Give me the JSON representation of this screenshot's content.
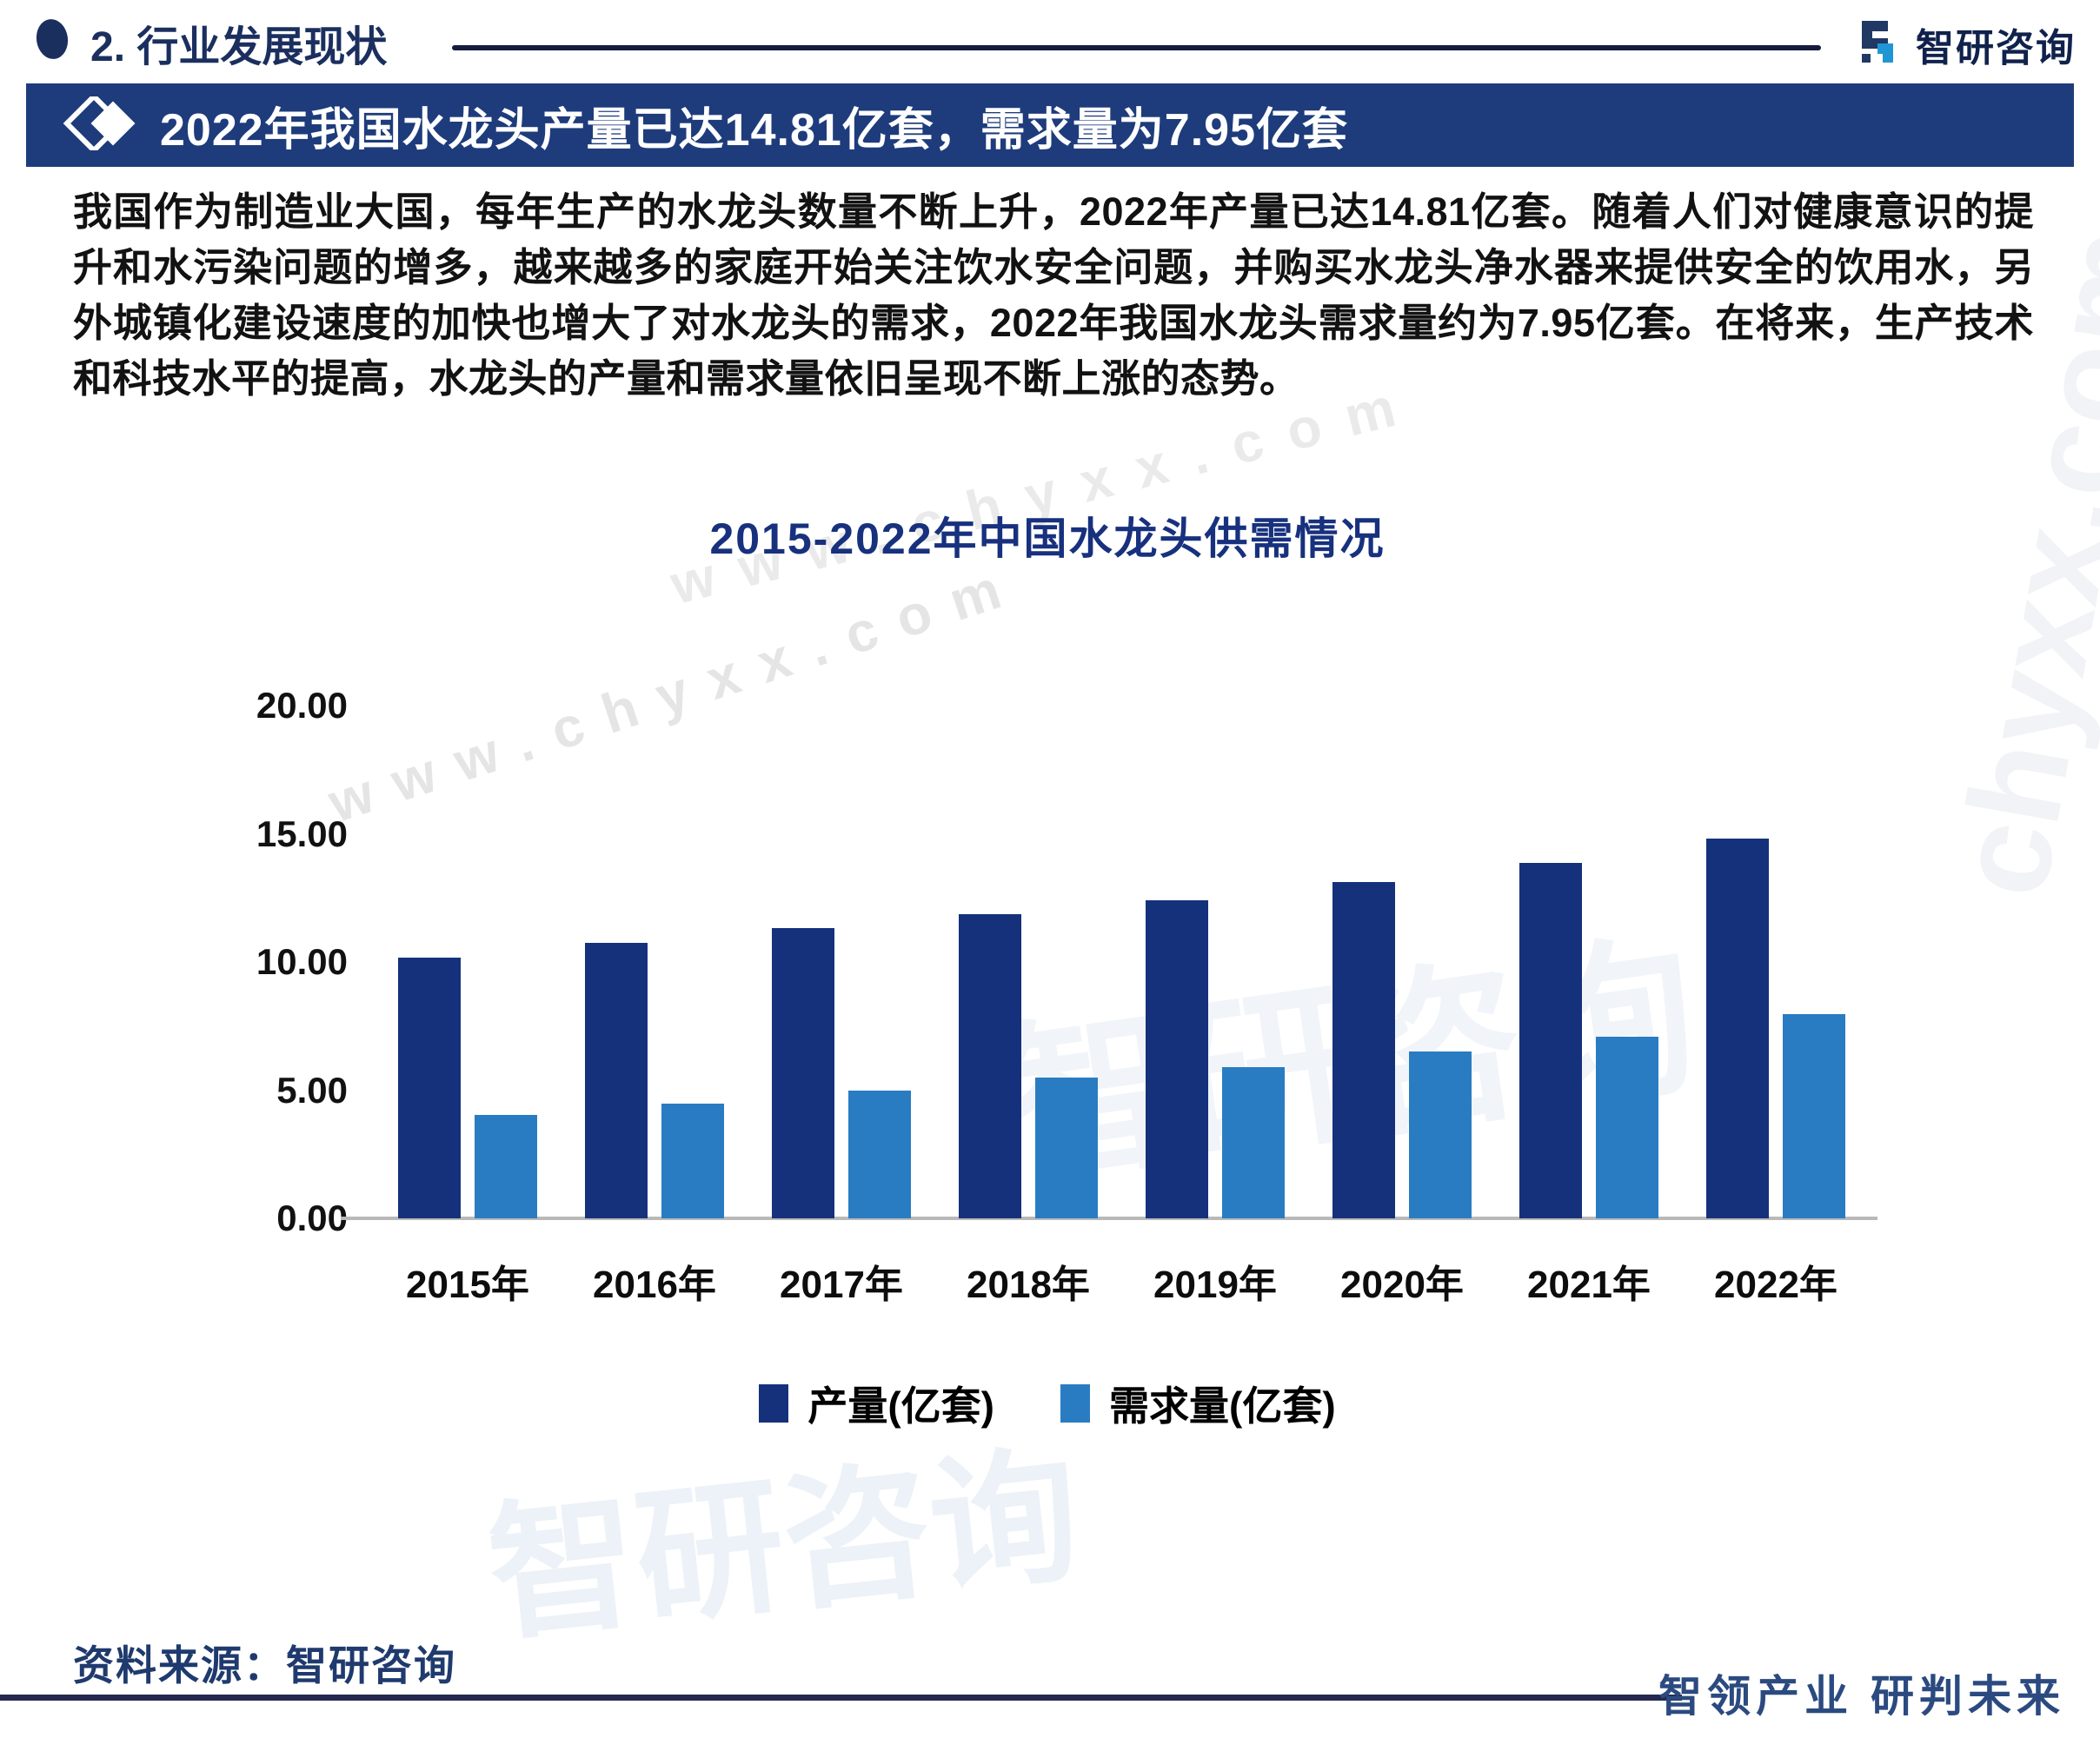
{
  "header": {
    "section_title": "2. 行业发展现状",
    "brand_name": "智研咨询"
  },
  "banner": {
    "title": "2022年我国水龙头产量已达14.81亿套，需求量为7.95亿套"
  },
  "paragraph": "我国作为制造业大国，每年生产的水龙头数量不断上升，2022年产量已达14.81亿套。随着人们对健康意识的提升和水污染问题的增多，越来越多的家庭开始关注饮水安全问题，并购买水龙头净水器来提供安全的饮用水，另外城镇化建设速度的加快也增大了对水龙头的需求，2022年我国水龙头需求量约为7.95亿套。在将来，生产技术和科技水平的提高，水龙头的产量和需求量依旧呈现不断上涨的态势。",
  "chart_data": {
    "type": "bar",
    "title": "2015-2022年中国水龙头供需情况",
    "categories": [
      "2015年",
      "2016年",
      "2017年",
      "2018年",
      "2019年",
      "2020年",
      "2021年",
      "2022年"
    ],
    "series": [
      {
        "name": "产量(亿套)",
        "color": "#15317b",
        "values": [
          10.18,
          10.74,
          11.31,
          11.88,
          12.42,
          13.12,
          13.88,
          14.81
        ]
      },
      {
        "name": "需求量(亿套)",
        "color": "#2a7cc2",
        "values": [
          4.03,
          4.48,
          4.97,
          5.48,
          5.91,
          6.52,
          7.08,
          7.95
        ]
      }
    ],
    "ylim": [
      0,
      20
    ],
    "ytick_labels": [
      "20.00",
      "15.00",
      "10.00",
      "5.00",
      "0.00"
    ],
    "grid": false,
    "legend_position": "bottom"
  },
  "footer": {
    "source": "资料来源：智研咨询",
    "slogan": "智领产业 研判未来"
  },
  "watermarks": {
    "w1": "www.chyxx.com",
    "w2": "www.chyxx.com",
    "w3": "智研咨询",
    "w4": "智研咨询",
    "w5": "chyxx.com"
  },
  "colors": {
    "bar_dark": "#15317b",
    "bar_light": "#2a7cc2",
    "banner_bg": "#1e3c7c",
    "navy_text": "#1b2f5f"
  }
}
